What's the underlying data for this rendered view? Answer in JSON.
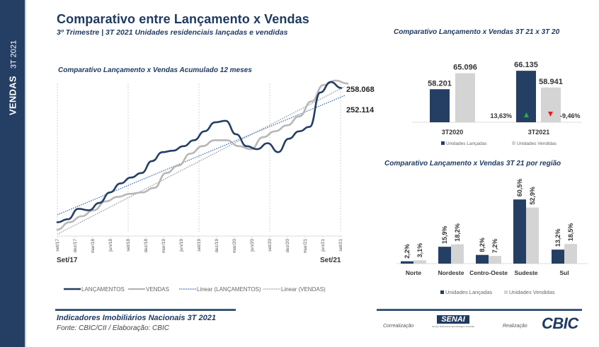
{
  "sidebar": {
    "title": "VENDAS",
    "period": "3T 2021"
  },
  "header": {
    "title": "Comparativo entre Lançamento x Vendas",
    "subtitle": "3º Trimestre | 3T 2021  Unidades residenciais lançadas e vendidas"
  },
  "colors": {
    "navy": "#243f63",
    "gray": "#c9c9c9",
    "up": "#2ea84a",
    "down": "#e02020"
  },
  "chart_data": [
    {
      "type": "line",
      "title": "Comparativo Lançamento x Vendas Acumulado 12 meses",
      "x_ticks": [
        "set/17",
        "dez/17",
        "mar/18",
        "jun/18",
        "set/18",
        "dez/18",
        "mar/19",
        "jun/19",
        "set/19",
        "dez/19",
        "mar/20",
        "jun/20",
        "set/20",
        "dez/20",
        "mar/21",
        "jun/21",
        "set/21"
      ],
      "start_label": "Set/17",
      "end_label": "Set/21",
      "series": [
        {
          "name": "LANÇAMENTOS",
          "end_value_label": "252.114",
          "values": [
            0.05,
            0.07,
            0.14,
            0.13,
            0.18,
            0.25,
            0.31,
            0.35,
            0.38,
            0.46,
            0.52,
            0.53,
            0.56,
            0.6,
            0.66,
            0.72,
            0.73,
            0.64,
            0.56,
            0.54,
            0.58,
            0.52,
            0.61,
            0.66,
            0.69,
            0.92,
            0.99,
            0.95
          ]
        },
        {
          "name": "VENDAS",
          "end_value_label": "258.068",
          "values": [
            0.0,
            0.05,
            0.09,
            0.13,
            0.19,
            0.22,
            0.24,
            0.25,
            0.28,
            0.38,
            0.43,
            0.51,
            0.56,
            0.6,
            0.6,
            0.56,
            0.54,
            0.62,
            0.66,
            0.7,
            0.76,
            0.86,
            0.97,
            1.0,
            0.98
          ]
        },
        {
          "name": "Linear (LANÇAMENTOS)",
          "line_start": 0.1,
          "line_end": 0.9
        },
        {
          "name": "Linear (VENDAS)",
          "line_start": -0.03,
          "line_end": 0.96
        }
      ],
      "legend": [
        "LANÇAMENTOS",
        "VENDAS",
        "Linear (LANÇAMENTOS)",
        "Linear (VENDAS)"
      ],
      "legend_position": "bottom",
      "grid": "vertical dotted lines at set/17, set/18, set/19, set/20, set/21"
    },
    {
      "type": "bar",
      "title": "Comparativo Lançamento x Vendas  3T 21 x 3T 20",
      "categories": [
        "3T2020",
        "3T2021"
      ],
      "series": [
        {
          "name": "Unidades Lançadas",
          "values": [
            58201,
            66135
          ],
          "labels": [
            "58.201",
            "66.135"
          ]
        },
        {
          "name": "Unidades Vendidas",
          "values": [
            65096,
            58941
          ],
          "labels": [
            "65.096",
            "58.941"
          ]
        }
      ],
      "annotations": [
        {
          "text": "13,63%",
          "series": "Unidades Lançadas",
          "direction": "up"
        },
        {
          "text": "-9,46%",
          "series": "Unidades Vendidas",
          "direction": "down"
        }
      ],
      "ylim": [
        44000,
        68000
      ],
      "legend_position": "bottom"
    },
    {
      "type": "bar",
      "title": "Comparativo Lançamento x Vendas  3T 21 por região",
      "categories": [
        "Norte",
        "Nordeste",
        "Centro-Oeste",
        "Sudeste",
        "Sul"
      ],
      "series": [
        {
          "name": "Unidades Lançadas",
          "values": [
            2.2,
            15.9,
            8.2,
            60.5,
            13.2
          ],
          "labels": [
            "2,2%",
            "15,9%",
            "8,2%",
            "60,5%",
            "13,2%"
          ]
        },
        {
          "name": "Unidades Vendidas",
          "values": [
            3.1,
            18.2,
            7.2,
            52.9,
            18.5
          ],
          "labels": [
            "3,1%",
            "18,2%",
            "7,2%",
            "52,9%",
            "18,5%"
          ]
        }
      ],
      "ylim": [
        0,
        62
      ],
      "legend_position": "bottom"
    }
  ],
  "footer": {
    "title": "Indicadores Imobiliários Nacionais 3T 2021",
    "source": "Fonte: CBIC/CII / Elaboração: CBIC",
    "correalizacao": "Correalização",
    "realizacao": "Realização",
    "senai": "SENAI",
    "senai_sub": "Serviço Nacional de Aprendizagem Industrial",
    "cbic": "CBIC"
  }
}
